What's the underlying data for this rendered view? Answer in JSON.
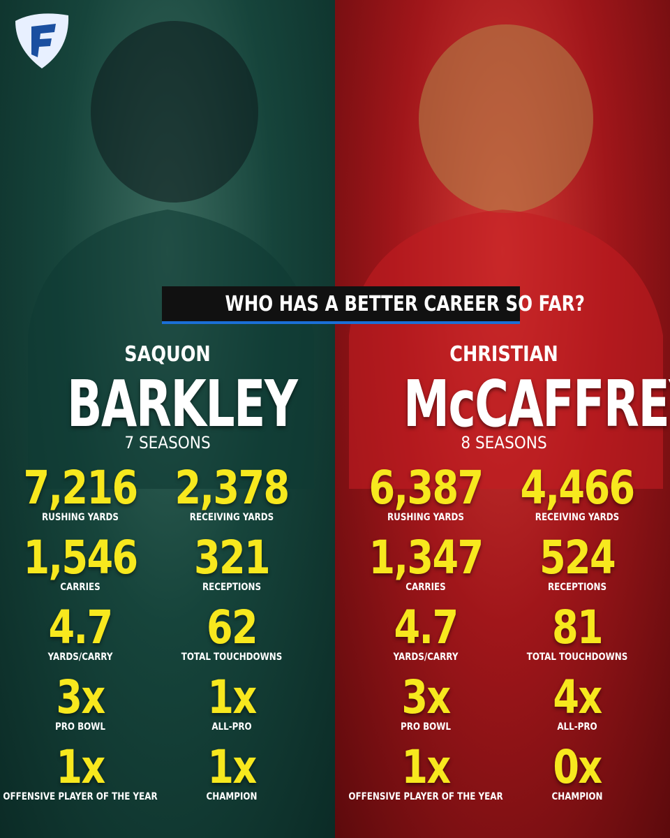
{
  "title": "WHO HAS A BETTER CAREER SO FAR?",
  "players": [
    {
      "first_name": "SAQUON",
      "last_name": "BARKLEY",
      "seasons": "7 SEASONS",
      "stats": [
        {
          "value": "7,216",
          "label": "RUSHING YARDS"
        },
        {
          "value": "2,378",
          "label": "RECEIVING YARDS"
        },
        {
          "value": "1,546",
          "label": "CARRIES"
        },
        {
          "value": "321",
          "label": "RECEPTIONS"
        },
        {
          "value": "4.7",
          "label": "YARDS/CARRY"
        },
        {
          "value": "62",
          "label": "TOTAL TOUCHDOWNS"
        },
        {
          "value": "3x",
          "label": "PRO BOWL"
        },
        {
          "value": "1x",
          "label": "ALL-PRO"
        },
        {
          "value": "1x",
          "label": "OFFENSIVE PLAYER OF THE YEAR"
        },
        {
          "value": "1x",
          "label": "CHAMPION"
        }
      ]
    },
    {
      "first_name": "CHRISTIAN",
      "last_name": "McCAFFREY",
      "seasons": "8 SEASONS",
      "stats": [
        {
          "value": "6,387",
          "label": "RUSHING YARDS"
        },
        {
          "value": "4,466",
          "label": "RECEIVING YARDS"
        },
        {
          "value": "1,347",
          "label": "CARRIES"
        },
        {
          "value": "524",
          "label": "RECEPTIONS"
        },
        {
          "value": "4.7",
          "label": "YARDS/CARRY"
        },
        {
          "value": "81",
          "label": "TOTAL TOUCHDOWNS"
        },
        {
          "value": "3x",
          "label": "PRO BOWL"
        },
        {
          "value": "4x",
          "label": "ALL-PRO"
        },
        {
          "value": "1x",
          "label": "OFFENSIVE PLAYER OF THE YEAR"
        },
        {
          "value": "0x",
          "label": "CHAMPION"
        }
      ]
    }
  ]
}
